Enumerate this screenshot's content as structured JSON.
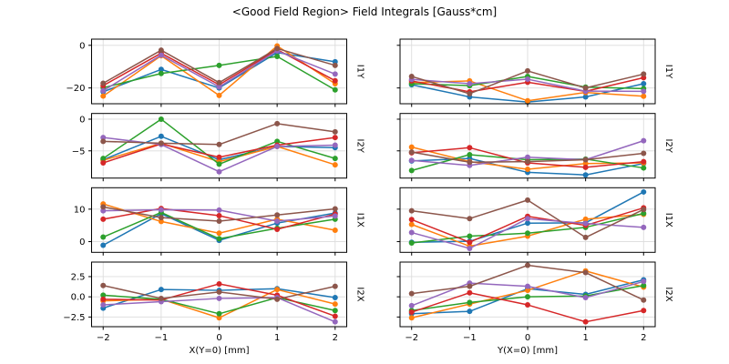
{
  "chart_data": {
    "type": "line",
    "title": "<Good Field Region> Field Integrals [Gauss*cm]",
    "x": [
      -2,
      -1,
      0,
      1,
      2
    ],
    "xtick_labels": [
      "−2",
      "−1",
      "0",
      "1",
      "2"
    ],
    "grid": true,
    "legend": "none",
    "series_names": [
      "series-1",
      "series-2",
      "series-3",
      "series-4",
      "series-5",
      "series-6"
    ],
    "series_colors": [
      "#1f77b4",
      "#ff7f0e",
      "#2ca02c",
      "#d62728",
      "#9467bd",
      "#8c564b"
    ],
    "columns": [
      {
        "xlabel": "X(Y=0) [mm]"
      },
      {
        "xlabel": "Y(X=0) [mm]"
      }
    ],
    "rows": [
      {
        "label": "I1Y",
        "yticks": [
          0,
          -20
        ],
        "ytick_labels": [
          "0",
          "−20"
        ],
        "ylim": [
          -27.4,
          2.9
        ]
      },
      {
        "label": "I2Y",
        "yticks": [
          0,
          -5
        ],
        "ytick_labels": [
          "0",
          "−5"
        ],
        "ylim": [
          -9.3,
          0.9
        ]
      },
      {
        "label": "I1X",
        "yticks": [
          10,
          0
        ],
        "ytick_labels": [
          "10",
          "0"
        ],
        "ylim": [
          -3.3,
          16.6
        ]
      },
      {
        "label": "I2X",
        "yticks": [
          2.5,
          0,
          -2.5
        ],
        "ytick_labels": [
          "2.5",
          "0.0",
          "−2.5"
        ],
        "ylim": [
          -3.7,
          4.3
        ]
      }
    ],
    "subplots": [
      {
        "row": 0,
        "col": 0,
        "series": [
          [
            -21.8,
            -11.3,
            -20.0,
            -3.4,
            -7.7
          ],
          [
            -23.8,
            -4.9,
            -23.5,
            -0.3,
            -18.0
          ],
          [
            -19.9,
            -13.2,
            -9.4,
            -5.2,
            -20.9
          ],
          [
            -18.9,
            -3.7,
            -18.5,
            -2.0,
            -16.6
          ],
          [
            -21.3,
            -4.6,
            -19.5,
            -2.6,
            -13.5
          ],
          [
            -17.8,
            -2.3,
            -17.5,
            -1.5,
            -9.4
          ]
        ]
      },
      {
        "row": 0,
        "col": 1,
        "series": [
          [
            -18.5,
            -24.2,
            -26.6,
            -24.2,
            -18.0
          ],
          [
            -17.5,
            -16.7,
            -26.0,
            -22.1,
            -23.9
          ],
          [
            -18.0,
            -18.9,
            -14.6,
            -19.6,
            -20.3
          ],
          [
            -16.7,
            -21.8,
            -17.3,
            -21.6,
            -15.2
          ],
          [
            -16.0,
            -18.0,
            -15.9,
            -21.5,
            -21.6
          ],
          [
            -14.6,
            -22.7,
            -12.0,
            -20.0,
            -13.5
          ]
        ]
      },
      {
        "row": 1,
        "col": 0,
        "series": [
          [
            -6.4,
            -2.7,
            -6.4,
            -4.3,
            -4.5
          ],
          [
            -6.5,
            -3.8,
            -6.7,
            -4.3,
            -7.2
          ],
          [
            -6.2,
            0.0,
            -7.1,
            -3.5,
            -6.2
          ],
          [
            -6.9,
            -3.9,
            -6.0,
            -4.1,
            -2.9
          ],
          [
            -2.9,
            -4.0,
            -8.3,
            -4.3,
            -4.1
          ],
          [
            -3.5,
            -3.8,
            -4.0,
            -0.7,
            -2.0
          ]
        ]
      },
      {
        "row": 1,
        "col": 1,
        "series": [
          [
            -6.6,
            -6.2,
            -8.4,
            -8.8,
            -7.0
          ],
          [
            -4.4,
            -6.7,
            -7.9,
            -7.0,
            -6.9
          ],
          [
            -8.1,
            -5.6,
            -6.4,
            -6.3,
            -7.7
          ],
          [
            -5.3,
            -4.5,
            -6.9,
            -7.6,
            -6.7
          ],
          [
            -6.5,
            -7.3,
            -6.0,
            -6.4,
            -3.4
          ],
          [
            -5.2,
            -6.8,
            -6.7,
            -6.4,
            -5.4
          ]
        ]
      },
      {
        "row": 2,
        "col": 0,
        "series": [
          [
            -1.1,
            8.6,
            0.4,
            5.7,
            8.8
          ],
          [
            11.6,
            6.2,
            2.6,
            6.9,
            3.5
          ],
          [
            1.4,
            9.0,
            0.9,
            4.1,
            6.9
          ],
          [
            6.9,
            10.2,
            8.0,
            3.8,
            8.5
          ],
          [
            9.5,
            9.8,
            9.7,
            6.3,
            7.9
          ],
          [
            10.7,
            7.4,
            6.3,
            8.2,
            10.1
          ]
        ]
      },
      {
        "row": 2,
        "col": 1,
        "series": [
          [
            -0.2,
            0.1,
            5.7,
            5.8,
            15.3
          ],
          [
            5.3,
            -1.4,
            1.7,
            6.9,
            8.4
          ],
          [
            -0.4,
            1.7,
            2.6,
            4.4,
            8.7
          ],
          [
            6.8,
            -0.2,
            7.8,
            5.0,
            10.4
          ],
          [
            2.8,
            -2.1,
            7.1,
            5.6,
            4.4
          ],
          [
            9.5,
            7.1,
            12.8,
            1.3,
            9.9
          ]
        ]
      },
      {
        "row": 3,
        "col": 0,
        "series": [
          [
            -1.4,
            0.9,
            0.8,
            1.0,
            -0.1
          ],
          [
            -0.5,
            -0.3,
            -2.6,
            0.9,
            -0.9
          ],
          [
            0.2,
            -0.3,
            -2.1,
            -0.1,
            -1.7
          ],
          [
            -0.3,
            -0.4,
            1.6,
            0.2,
            -2.4
          ],
          [
            -1.0,
            -0.6,
            -0.2,
            -0.1,
            -3.1
          ],
          [
            1.4,
            -0.2,
            0.6,
            -0.3,
            1.3
          ]
        ]
      },
      {
        "row": 3,
        "col": 1,
        "series": [
          [
            -2.1,
            -1.8,
            1.0,
            0.3,
            2.1
          ],
          [
            -2.6,
            -0.9,
            0.8,
            3.2,
            1.2
          ],
          [
            -1.7,
            -0.7,
            0.0,
            0.1,
            1.4
          ],
          [
            -1.9,
            0.5,
            -1.0,
            -3.1,
            -1.7
          ],
          [
            -1.1,
            1.7,
            1.3,
            -0.1,
            1.9
          ],
          [
            0.4,
            1.3,
            3.9,
            3.0,
            -0.4
          ]
        ]
      }
    ]
  }
}
